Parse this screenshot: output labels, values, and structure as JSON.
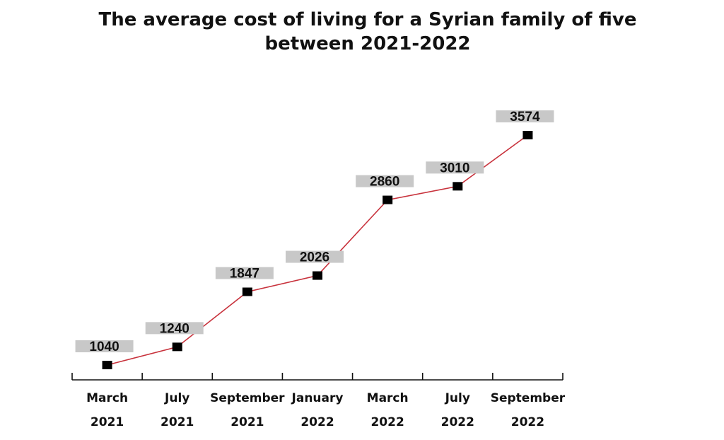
{
  "chart_data": {
    "type": "line",
    "title": "The average cost of living for a Syrian family of five between 2021-2022",
    "title_lines": [
      "The average cost of living for a Syrian family of five",
      "between 2021-2022"
    ],
    "xlabel": "",
    "ylabel": "",
    "categories": [
      {
        "label": "March 2021",
        "line1": "March",
        "line2": "2021"
      },
      {
        "label": "July 2021",
        "line1": "July",
        "line2": "2021"
      },
      {
        "label": "September 2021",
        "line1": "September",
        "line2": "2021"
      },
      {
        "label": "January 2022",
        "line1": "January",
        "line2": "2022"
      },
      {
        "label": "March 2022",
        "line1": "March",
        "line2": "2022"
      },
      {
        "label": "July 2022",
        "line1": "July",
        "line2": "2022"
      },
      {
        "label": "September 2022",
        "line1": "September",
        "line2": "2022"
      }
    ],
    "series": [
      {
        "values": [
          1040,
          1240,
          1847,
          2026,
          2860,
          3010,
          3574
        ],
        "data_labels": [
          "1040",
          "1240",
          "1847",
          "2026",
          "2860",
          "3010",
          "3574"
        ],
        "color": "#c8323c",
        "marker": "square",
        "marker_color": "#000000"
      }
    ],
    "grid": false,
    "legend": "none",
    "label_box_color": "#c8c8c8",
    "axis_color": "#111111"
  }
}
